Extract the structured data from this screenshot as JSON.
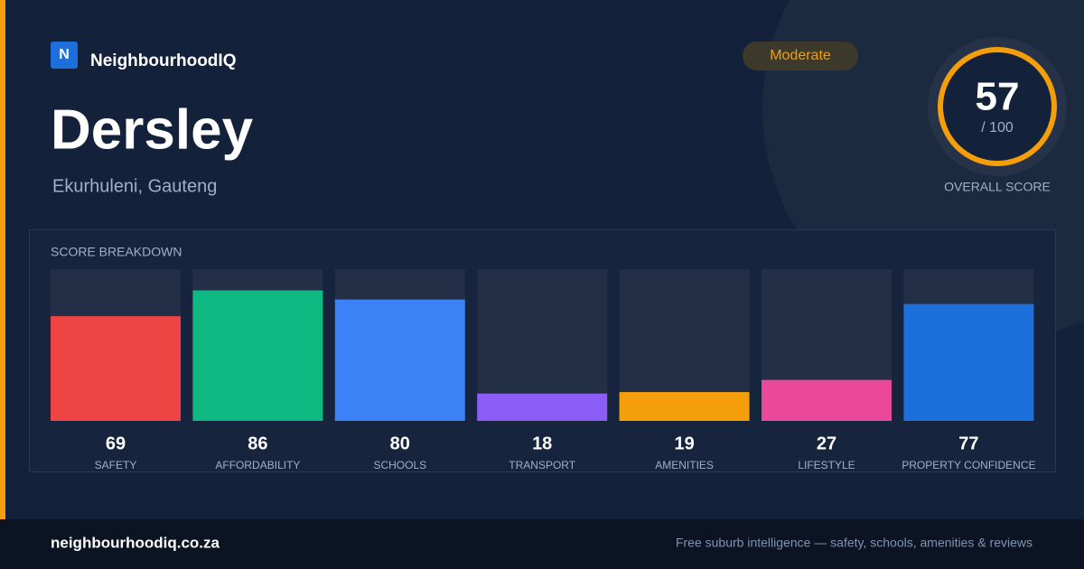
{
  "header": {
    "logo_letter": "N",
    "brand": "NeighbourhoodIQ",
    "badge": "Moderate"
  },
  "suburb": {
    "name": "Dersley",
    "location": "Ekurhuleni, Gauteng"
  },
  "overall": {
    "score": 57,
    "out_of": "/ 100",
    "label": "OVERALL SCORE"
  },
  "chart_data": {
    "type": "bar",
    "title": "SCORE BREAKDOWN",
    "categories": [
      "SAFETY",
      "AFFORDABILITY",
      "SCHOOLS",
      "TRANSPORT",
      "AMENITIES",
      "LIFESTYLE",
      "PROPERTY CONFIDENCE"
    ],
    "values": [
      69,
      86,
      80,
      18,
      19,
      27,
      77
    ],
    "colors": [
      "#ef4444",
      "#10b981",
      "#3b82f6",
      "#8b5cf6",
      "#f59e0b",
      "#ec4899",
      "#1d6fdc"
    ],
    "ylim": [
      0,
      100
    ]
  },
  "footer": {
    "url": "neighbourhoodiq.co.za",
    "tagline": "Free suburb intelligence — safety, schools, amenities & reviews"
  }
}
